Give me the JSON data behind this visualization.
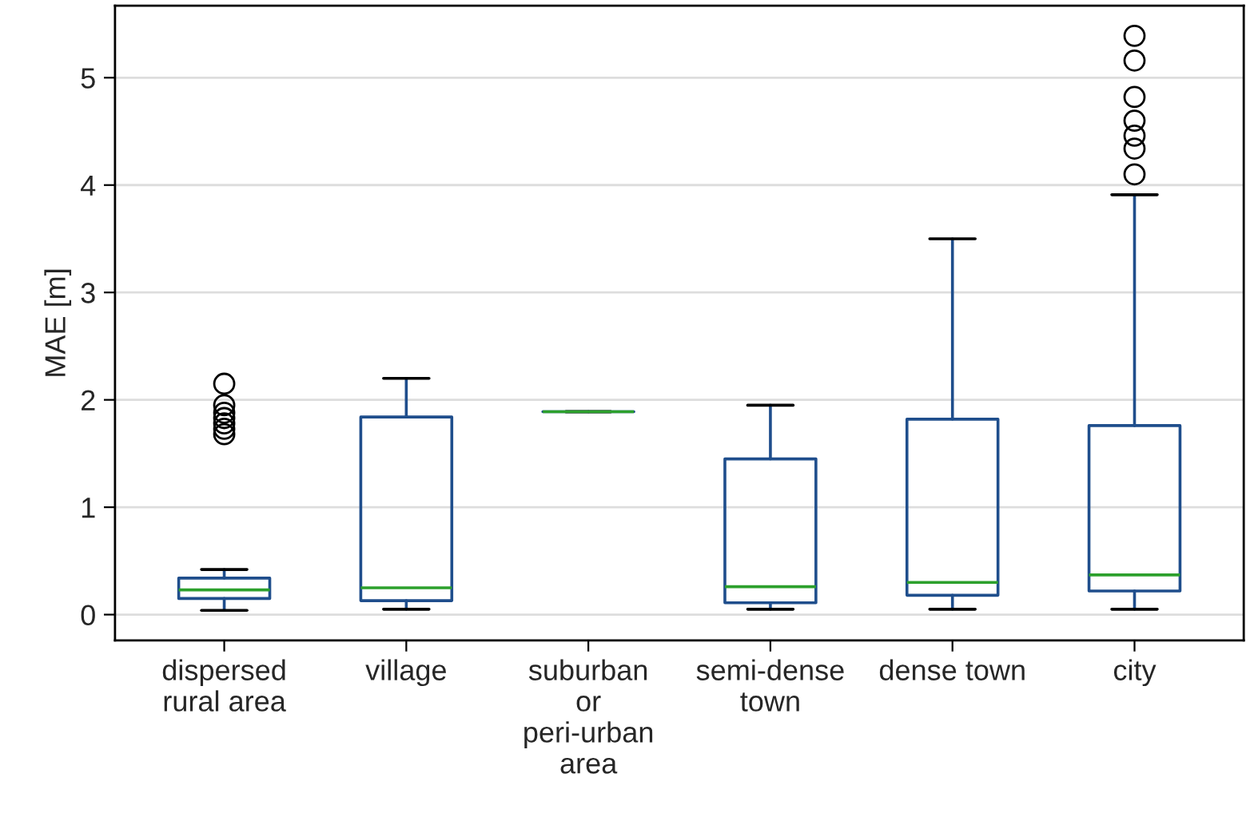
{
  "chart_data": {
    "type": "box",
    "ylabel": "MAE [m]",
    "categories": [
      "dispersed\nrural area",
      "village",
      "suburban\nor\nperi-urban\narea",
      "semi-dense\ntown",
      "dense town",
      "city"
    ],
    "boxes": [
      {
        "low": 0.04,
        "q1": 0.15,
        "median": 0.23,
        "q3": 0.34,
        "high": 0.42,
        "outliers": [
          2.15,
          1.95,
          1.88,
          1.83,
          1.78,
          1.73,
          1.68
        ]
      },
      {
        "low": 0.05,
        "q1": 0.13,
        "median": 0.25,
        "q3": 1.84,
        "high": 2.2
      },
      {
        "low": 1.89,
        "q1": 1.89,
        "median": 1.89,
        "q3": 1.89,
        "high": 1.89
      },
      {
        "low": 0.05,
        "q1": 0.11,
        "median": 0.26,
        "q3": 1.45,
        "high": 1.95
      },
      {
        "low": 0.05,
        "q1": 0.18,
        "median": 0.3,
        "q3": 1.82,
        "high": 3.5
      },
      {
        "low": 0.05,
        "q1": 0.22,
        "median": 0.37,
        "q3": 1.76,
        "high": 3.91,
        "outliers": [
          5.39,
          5.16,
          4.82,
          4.6,
          4.46,
          4.34,
          4.1
        ]
      }
    ],
    "color": "#1f4e8c",
    "ylim": [
      -0.24,
      5.67
    ],
    "yticks": [
      0,
      1,
      2,
      3,
      4,
      5
    ],
    "grid": "y"
  }
}
